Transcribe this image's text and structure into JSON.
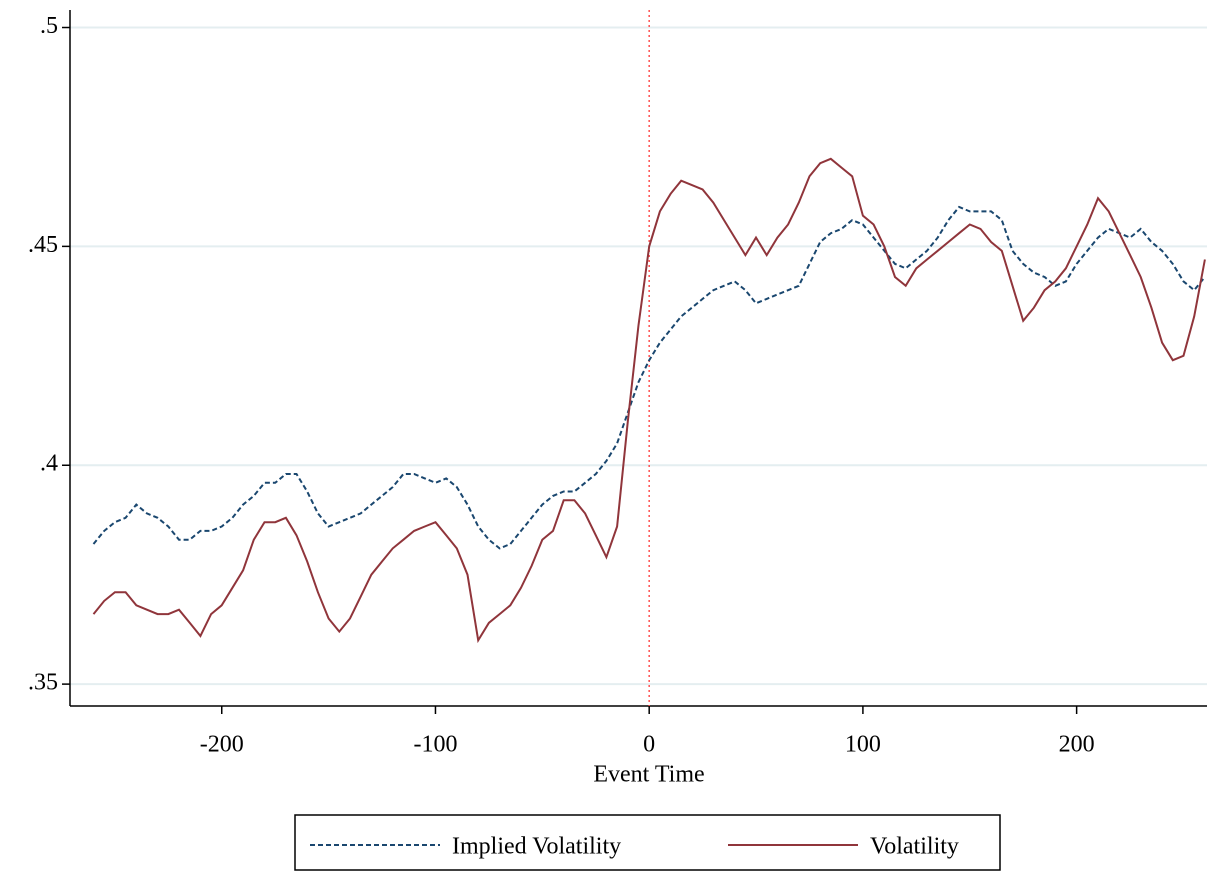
{
  "chart_data": {
    "type": "line",
    "x_label": "Event Time",
    "x": [
      -260,
      -255,
      -250,
      -245,
      -240,
      -235,
      -230,
      -225,
      -220,
      -215,
      -210,
      -205,
      -200,
      -195,
      -190,
      -185,
      -180,
      -175,
      -170,
      -165,
      -160,
      -155,
      -150,
      -145,
      -140,
      -135,
      -130,
      -125,
      -120,
      -115,
      -110,
      -105,
      -100,
      -95,
      -90,
      -85,
      -80,
      -75,
      -70,
      -65,
      -60,
      -55,
      -50,
      -45,
      -40,
      -35,
      -30,
      -25,
      -20,
      -15,
      -10,
      -5,
      0,
      5,
      10,
      15,
      20,
      25,
      30,
      35,
      40,
      45,
      50,
      55,
      60,
      65,
      70,
      75,
      80,
      85,
      90,
      95,
      100,
      105,
      110,
      115,
      120,
      125,
      130,
      135,
      140,
      145,
      150,
      155,
      160,
      165,
      170,
      175,
      180,
      185,
      190,
      195,
      200,
      205,
      210,
      215,
      220,
      225,
      230,
      235,
      240,
      245,
      250,
      255,
      260
    ],
    "series": [
      {
        "name": "Implied Volatility",
        "color": "#1a476f",
        "dashed": true,
        "values": [
          0.382,
          0.385,
          0.387,
          0.388,
          0.391,
          0.389,
          0.388,
          0.386,
          0.383,
          0.383,
          0.385,
          0.385,
          0.386,
          0.388,
          0.391,
          0.393,
          0.396,
          0.396,
          0.398,
          0.398,
          0.394,
          0.389,
          0.386,
          0.387,
          0.388,
          0.389,
          0.391,
          0.393,
          0.395,
          0.398,
          0.398,
          0.397,
          0.396,
          0.397,
          0.395,
          0.391,
          0.386,
          0.383,
          0.381,
          0.382,
          0.385,
          0.388,
          0.391,
          0.393,
          0.394,
          0.394,
          0.396,
          0.398,
          0.401,
          0.405,
          0.412,
          0.419,
          0.424,
          0.428,
          0.431,
          0.434,
          0.436,
          0.438,
          0.44,
          0.441,
          0.442,
          0.44,
          0.437,
          0.438,
          0.439,
          0.44,
          0.441,
          0.446,
          0.451,
          0.453,
          0.454,
          0.456,
          0.455,
          0.452,
          0.449,
          0.446,
          0.445,
          0.447,
          0.449,
          0.452,
          0.456,
          0.459,
          0.458,
          0.458,
          0.458,
          0.456,
          0.449,
          0.446,
          0.444,
          0.443,
          0.441,
          0.442,
          0.446,
          0.449,
          0.452,
          0.454,
          0.453,
          0.452,
          0.454,
          0.451,
          0.449,
          0.446,
          0.442,
          0.44,
          0.443
        ]
      },
      {
        "name": "Volatility",
        "color": "#90353b",
        "dashed": false,
        "values": [
          0.366,
          0.369,
          0.371,
          0.371,
          0.368,
          0.367,
          0.366,
          0.366,
          0.367,
          0.364,
          0.361,
          0.366,
          0.368,
          0.372,
          0.376,
          0.383,
          0.387,
          0.387,
          0.388,
          0.384,
          0.378,
          0.371,
          0.365,
          0.362,
          0.365,
          0.37,
          0.375,
          0.378,
          0.381,
          0.383,
          0.385,
          0.386,
          0.387,
          0.384,
          0.381,
          0.375,
          0.36,
          0.364,
          0.366,
          0.368,
          0.372,
          0.377,
          0.383,
          0.385,
          0.392,
          0.392,
          0.389,
          0.384,
          0.379,
          0.386,
          0.41,
          0.432,
          0.45,
          0.458,
          0.462,
          0.465,
          0.464,
          0.463,
          0.46,
          0.456,
          0.452,
          0.448,
          0.452,
          0.448,
          0.452,
          0.455,
          0.46,
          0.466,
          0.469,
          0.47,
          0.468,
          0.466,
          0.457,
          0.455,
          0.45,
          0.443,
          0.441,
          0.445,
          0.447,
          0.449,
          0.451,
          0.453,
          0.455,
          0.454,
          0.451,
          0.449,
          0.441,
          0.433,
          0.436,
          0.44,
          0.442,
          0.445,
          0.45,
          0.455,
          0.461,
          0.458,
          0.453,
          0.448,
          0.443,
          0.436,
          0.428,
          0.424,
          0.425,
          0.434,
          0.447
        ]
      }
    ],
    "xlim": [
      -271,
      261
    ],
    "xticks": [
      -200,
      -100,
      0,
      100,
      200
    ],
    "ylim": [
      0.345,
      0.504
    ],
    "yticks": [
      {
        "value": 0.35,
        "label": ".35"
      },
      {
        "value": 0.4,
        "label": ".4"
      },
      {
        "value": 0.45,
        "label": ".45"
      },
      {
        "value": 0.5,
        "label": ".5"
      }
    ],
    "grid": true,
    "vline": 0,
    "vline_color": "#ff5050",
    "legend": "bottom"
  }
}
